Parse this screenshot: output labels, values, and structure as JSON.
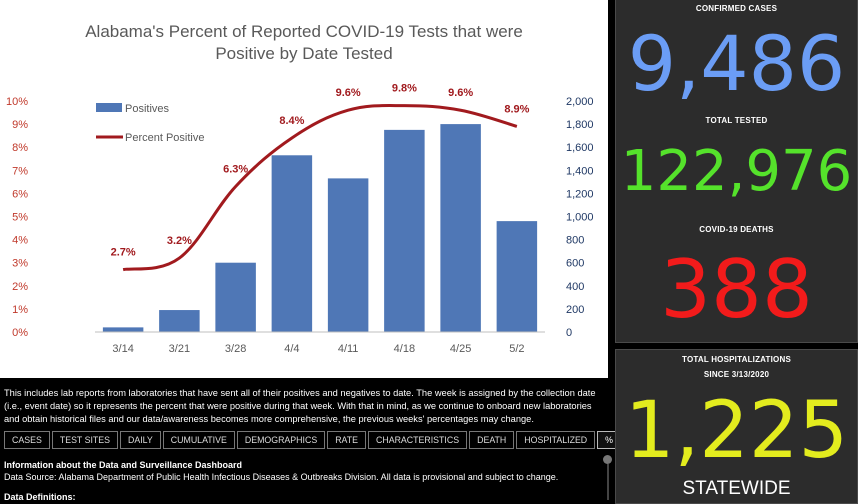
{
  "chart_data": {
    "type": "bar",
    "title": "Alabama's Percent of Reported COVID-19 Tests that were Positive by Date Tested",
    "title_lines": [
      "Alabama's Percent of Reported COVID-19 Tests that were",
      "Positive by Date Tested"
    ],
    "categories": [
      "3/14",
      "3/21",
      "3/28",
      "4/4",
      "4/11",
      "4/18",
      "4/25",
      "5/2"
    ],
    "series": [
      {
        "name": "Positives",
        "type": "bar",
        "axis": "right",
        "values": [
          40,
          190,
          600,
          1530,
          1330,
          1750,
          1800,
          960
        ],
        "color": "#4f77b6"
      },
      {
        "name": "Percent Positive",
        "type": "line",
        "axis": "left",
        "values": [
          2.7,
          3.2,
          6.3,
          8.4,
          9.6,
          9.8,
          9.6,
          8.9
        ],
        "labels": [
          "2.7%",
          "3.2%",
          "6.3%",
          "8.4%",
          "9.6%",
          "9.8%",
          "9.6%",
          "8.9%"
        ],
        "color": "#a11a1e"
      }
    ],
    "y_left": {
      "min": 0,
      "max": 10,
      "ticks": [
        "0%",
        "1%",
        "2%",
        "3%",
        "4%",
        "5%",
        "6%",
        "7%",
        "8%",
        "9%",
        "10%"
      ]
    },
    "y_right": {
      "min": 0,
      "max": 2000,
      "ticks": [
        "0",
        "200",
        "400",
        "600",
        "800",
        "1,000",
        "1,200",
        "1,400",
        "1,600",
        "1,800",
        "2,000"
      ]
    },
    "legend": "top-left",
    "grid": false,
    "colors": {
      "left_axis_text": "#c0392b",
      "right_axis_text": "#1f3864"
    }
  },
  "note": "This includes lab reports from laboratories that have sent all of their positives and negatives to date.  The week is assigned by the collection date (i.e., event date) so it represents the percent that were positive during that week.  With that in mind, as we continue to onboard new laboratories and obtain historical files and our data/awareness becomes more comprehensive, the previous weeks' percentages may change.",
  "tabs": [
    "CASES",
    "TEST SITES",
    "DAILY",
    "CUMULATIVE",
    "DEMOGRAPHICS",
    "RATE",
    "CHARACTERISTICS",
    "DEATH",
    "HOSPITALIZED",
    "% POSITIVE"
  ],
  "active_tab": "% POSITIVE",
  "info": {
    "heading": "Information about the Data and Surveillance Dashboard",
    "source": "Data Source: Alabama Department of Public Health Infectious Diseases & Outbreaks Division. All data is provisional and subject to change.",
    "definitions": "Data Definitions:"
  },
  "stats": {
    "confirmed_label": "CONFIRMED CASES",
    "confirmed_value": "9,486",
    "tested_label": "TOTAL TESTED",
    "tested_value": "122,976",
    "deaths_label": "COVID-19 DEATHS",
    "deaths_value": "388",
    "hosp_label": "TOTAL HOSPITALIZATIONS",
    "hosp_sublabel": "SINCE 3/13/2020",
    "hosp_value": "1,225",
    "hosp_scope": "STATEWIDE",
    "colors": {
      "confirmed": "#6b9df5",
      "tested": "#55e22b",
      "deaths": "#f21b1b",
      "hospitalizations": "#e3ec1e"
    }
  }
}
